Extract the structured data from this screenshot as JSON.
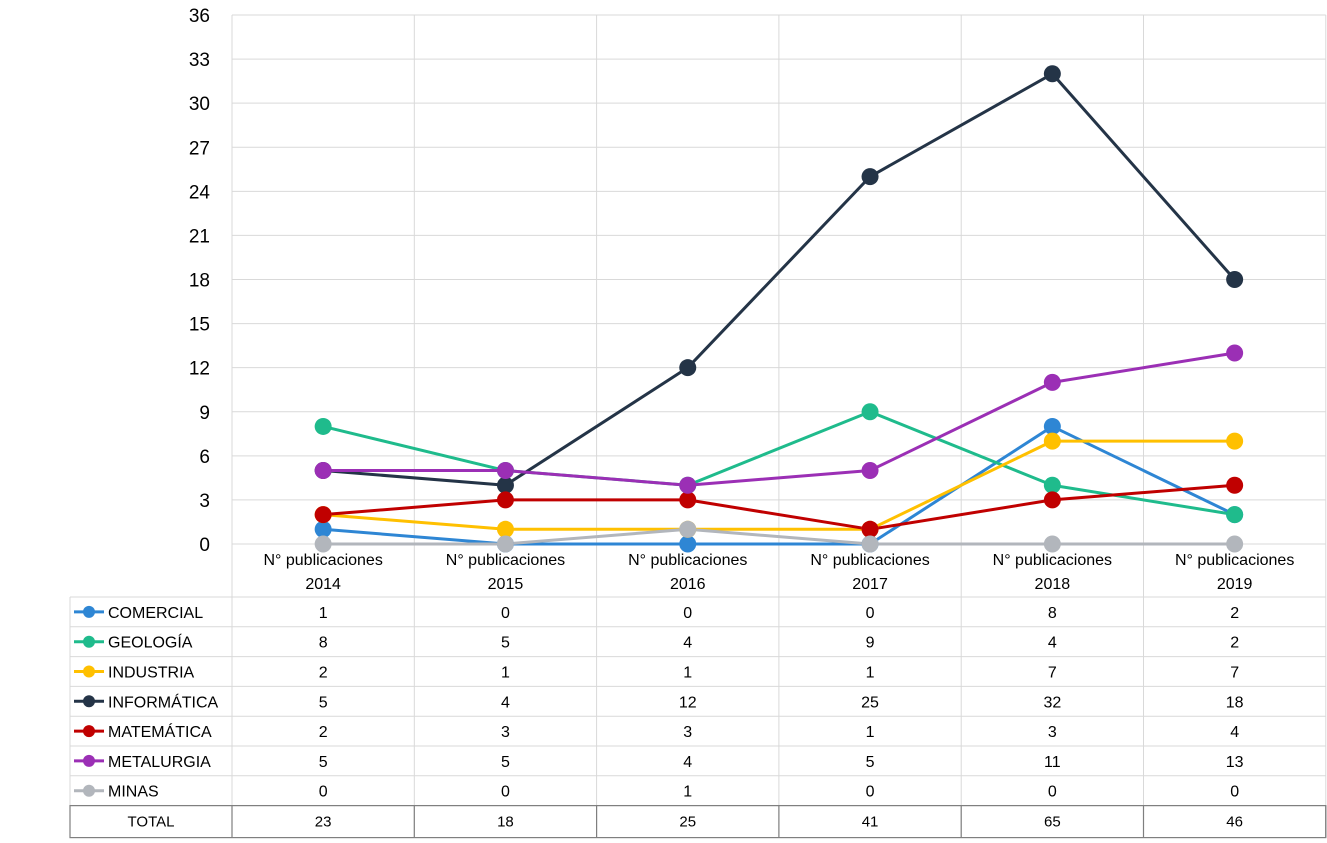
{
  "chart_data": {
    "type": "line",
    "categories": [
      [
        "N° publicaciones",
        "2014"
      ],
      [
        "N° publicaciones",
        "2015"
      ],
      [
        "N° publicaciones",
        "2016"
      ],
      [
        "N° publicaciones",
        "2017"
      ],
      [
        "N° publicaciones",
        "2018"
      ],
      [
        "N° publicaciones",
        "2019"
      ]
    ],
    "ylim": [
      0,
      36
    ],
    "yticks": [
      0,
      3,
      6,
      9,
      12,
      15,
      18,
      21,
      24,
      27,
      30,
      33,
      36
    ],
    "grid": true,
    "legend": "data-table",
    "series": [
      {
        "name": "COMERCIAL",
        "color": "#2E86D4",
        "values": [
          1,
          0,
          0,
          0,
          8,
          2
        ]
      },
      {
        "name": "GEOLOGÍA",
        "color": "#1FBB8C",
        "values": [
          8,
          5,
          4,
          9,
          4,
          2
        ]
      },
      {
        "name": "INDUSTRIA",
        "color": "#FFC000",
        "values": [
          2,
          1,
          1,
          1,
          7,
          7
        ]
      },
      {
        "name": "INFORMÁTICA",
        "color": "#243447",
        "values": [
          5,
          4,
          12,
          25,
          32,
          18
        ]
      },
      {
        "name": "MATEMÁTICA",
        "color": "#C00000",
        "values": [
          2,
          3,
          3,
          1,
          3,
          4
        ]
      },
      {
        "name": "METALURGIA",
        "color": "#9B2FB5",
        "values": [
          5,
          5,
          4,
          5,
          11,
          13
        ]
      },
      {
        "name": "MINAS",
        "color": "#B2B6BC",
        "values": [
          0,
          0,
          1,
          0,
          0,
          0
        ]
      }
    ],
    "total": {
      "label": "TOTAL",
      "values": [
        23,
        18,
        25,
        41,
        65,
        46
      ]
    }
  }
}
